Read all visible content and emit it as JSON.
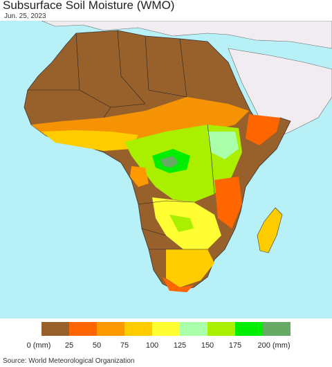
{
  "header": {
    "title": "Subsurface Soil Moisture (WMO)",
    "date": "Jun. 25, 2023"
  },
  "legend": {
    "unit_label": "0 (mm)",
    "ticks": [
      "25",
      "50",
      "75",
      "100",
      "125",
      "150",
      "175",
      "200 (mm)"
    ],
    "colors": [
      "#98612c",
      "#ff6600",
      "#ff9900",
      "#ffcc00",
      "#ffff33",
      "#aaffaa",
      "#aaee00",
      "#00ee00",
      "#66aa66"
    ]
  },
  "map": {
    "ocean_color": "#b8f0f8",
    "nodata_land_color": "#f0ecf0",
    "region": "Africa"
  },
  "footer": {
    "source": "Source: World Meteorological Organization"
  }
}
